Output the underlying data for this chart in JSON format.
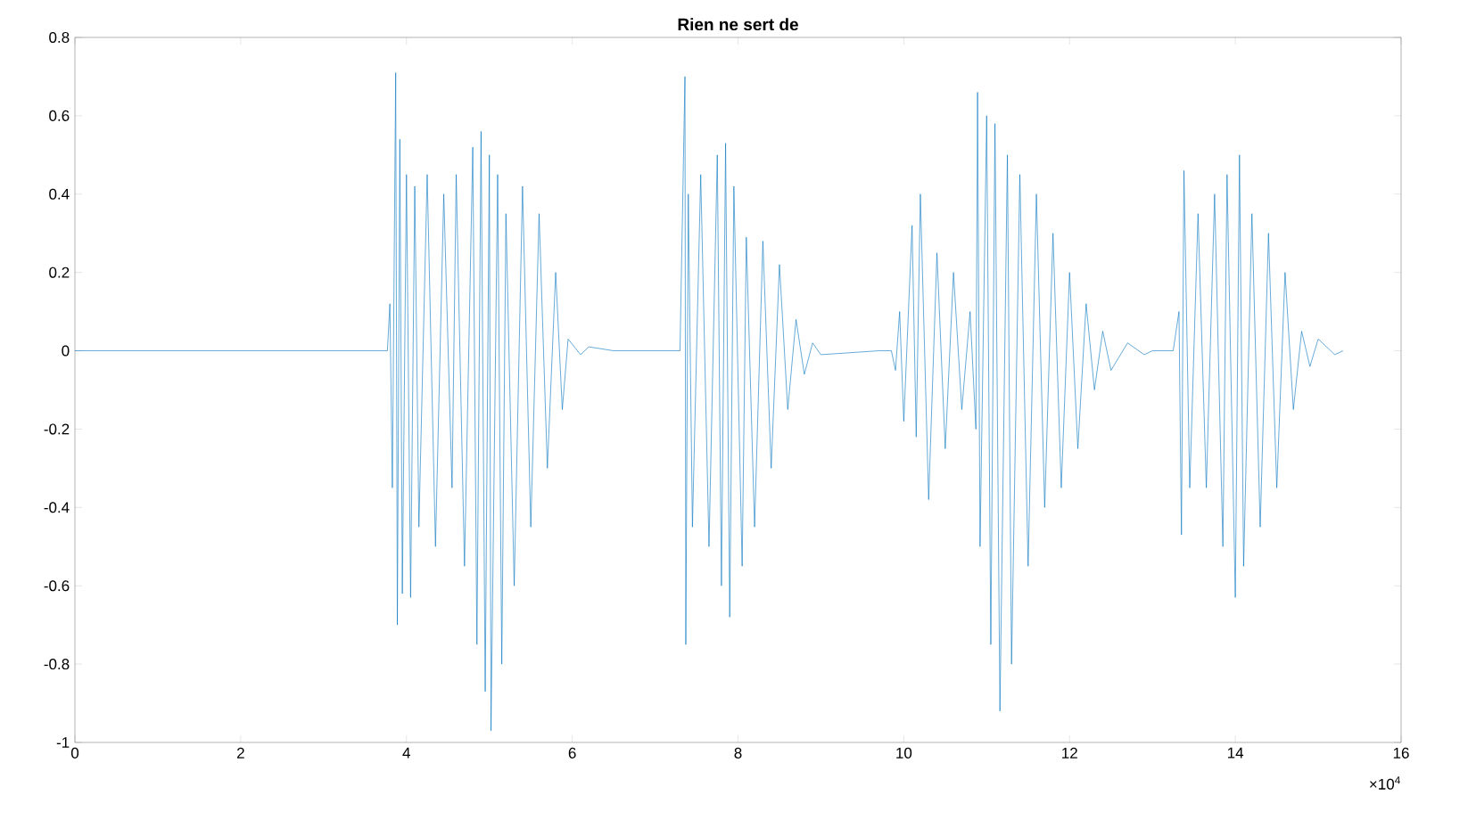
{
  "chart_data": {
    "type": "line",
    "title": "Rien ne sert de",
    "annotations": [
      "×10$^{4}$"
    ],
    "color": "#0072bd",
    "grid": false,
    "xlim": [
      0,
      16
    ],
    "ylim": [
      -1,
      0.8
    ],
    "xticks": [
      0,
      2,
      4,
      6,
      8,
      10,
      12,
      14,
      16
    ],
    "yticks": [
      -1,
      -0.8,
      -0.6,
      -0.4,
      -0.2,
      0,
      0.2,
      0.4,
      0.6,
      0.8
    ],
    "x": [
      0,
      3.3,
      3.77,
      3.8,
      3.83,
      3.87,
      3.89,
      3.92,
      3.95,
      4.0,
      4.05,
      4.1,
      4.15,
      4.25,
      4.35,
      4.45,
      4.55,
      4.6,
      4.7,
      4.8,
      4.85,
      4.9,
      4.95,
      5.0,
      5.02,
      5.1,
      5.15,
      5.2,
      5.3,
      5.4,
      5.5,
      5.6,
      5.7,
      5.8,
      5.88,
      5.95,
      6.1,
      6.2,
      6.5,
      7.3,
      7.36,
      7.37,
      7.4,
      7.45,
      7.55,
      7.65,
      7.75,
      7.8,
      7.85,
      7.9,
      7.95,
      8.05,
      8.1,
      8.2,
      8.3,
      8.4,
      8.5,
      8.6,
      8.7,
      8.8,
      8.9,
      9.0,
      9.7,
      9.85,
      9.9,
      9.95,
      10.0,
      10.1,
      10.15,
      10.2,
      10.3,
      10.4,
      10.5,
      10.6,
      10.7,
      10.8,
      10.87,
      10.89,
      10.92,
      11.0,
      11.05,
      11.1,
      11.16,
      11.25,
      11.3,
      11.4,
      11.5,
      11.6,
      11.7,
      11.8,
      11.9,
      12.0,
      12.1,
      12.2,
      12.3,
      12.4,
      12.5,
      12.7,
      12.9,
      13.0,
      13.25,
      13.32,
      13.35,
      13.38,
      13.45,
      13.55,
      13.65,
      13.75,
      13.85,
      13.9,
      14.0,
      14.05,
      14.1,
      14.2,
      14.3,
      14.4,
      14.5,
      14.6,
      14.7,
      14.8,
      14.9,
      15.0,
      15.2,
      15.3
    ],
    "values": [
      0,
      0,
      0,
      0.12,
      -0.35,
      0.71,
      -0.7,
      0.54,
      -0.62,
      0.45,
      -0.63,
      0.42,
      -0.45,
      0.45,
      -0.5,
      0.4,
      -0.35,
      0.45,
      -0.55,
      0.52,
      -0.75,
      0.56,
      -0.87,
      0.5,
      -0.97,
      0.45,
      -0.8,
      0.35,
      -0.6,
      0.42,
      -0.45,
      0.35,
      -0.3,
      0.2,
      -0.15,
      0.03,
      -0.01,
      0.01,
      0,
      0,
      0.7,
      -0.75,
      0.4,
      -0.45,
      0.45,
      -0.5,
      0.5,
      -0.6,
      0.53,
      -0.68,
      0.42,
      -0.55,
      0.29,
      -0.45,
      0.28,
      -0.3,
      0.22,
      -0.15,
      0.08,
      -0.06,
      0.02,
      -0.01,
      0,
      0,
      -0.05,
      0.1,
      -0.18,
      0.32,
      -0.22,
      0.4,
      -0.38,
      0.25,
      -0.25,
      0.2,
      -0.15,
      0.1,
      -0.2,
      0.66,
      -0.5,
      0.6,
      -0.75,
      0.58,
      -0.92,
      0.5,
      -0.8,
      0.45,
      -0.55,
      0.4,
      -0.4,
      0.3,
      -0.35,
      0.2,
      -0.25,
      0.12,
      -0.1,
      0.05,
      -0.05,
      0.02,
      -0.01,
      0,
      0,
      0.1,
      -0.47,
      0.46,
      -0.35,
      0.35,
      -0.35,
      0.4,
      -0.5,
      0.45,
      -0.63,
      0.5,
      -0.55,
      0.35,
      -0.45,
      0.3,
      -0.35,
      0.2,
      -0.15,
      0.05,
      -0.04,
      0.03,
      -0.01,
      0
    ]
  }
}
